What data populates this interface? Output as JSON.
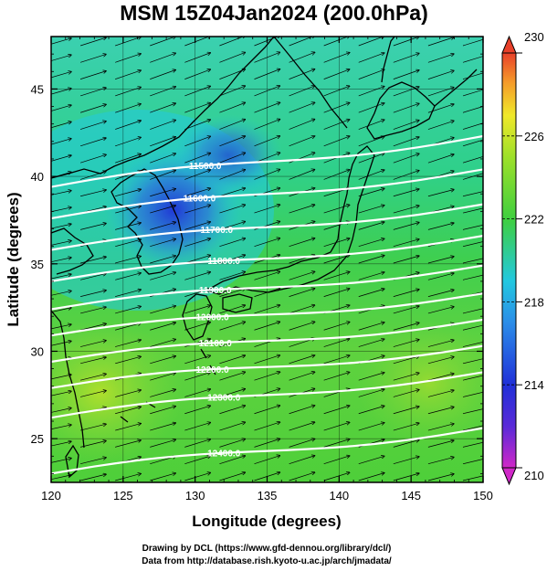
{
  "title": "MSM 15Z04Jan2024 (200.0hPa)",
  "x_label": "Longitude (degrees)",
  "y_label": "Latitude  (degrees)",
  "x_ticks": [
    "120",
    "125",
    "130",
    "135",
    "140",
    "145",
    "150"
  ],
  "y_ticks": [
    "25",
    "30",
    "35",
    "40",
    "45"
  ],
  "colorbar_ticks": [
    "230",
    "226",
    "222",
    "218",
    "214",
    "210"
  ],
  "credits": [
    "Drawing by DCL (https://www.gfd-dennou.org/library/dcl/)",
    "Data from http://database.rish.kyoto-u.ac.jp/arch/jmadata/"
  ],
  "colors": {
    "cold": "#2a2ad8",
    "cyan": "#22c8e0",
    "green": "#3fcf3f",
    "yellow_green": "#9ee02a",
    "contour": "#ffffff",
    "coast": "#000000",
    "colorbar_top": "#e8402a",
    "colorbar_bottom": "#d028c8"
  },
  "map_data": {
    "lon_range": [
      120,
      150
    ],
    "lat_range": [
      22.5,
      48
    ],
    "field": "temperature",
    "colorbar_range": [
      210,
      230
    ],
    "contours": [
      {
        "label": "11500.0",
        "lat_start": 39.4,
        "lat_end": 42.3,
        "label_lon": 130.7
      },
      {
        "label": "11600.0",
        "lat_start": 37.6,
        "lat_end": 40.4,
        "label_lon": 130.3
      },
      {
        "label": "11700.0",
        "lat_start": 35.8,
        "lat_end": 38.4,
        "label_lon": 131.5
      },
      {
        "label": "11800.0",
        "lat_start": 34.0,
        "lat_end": 36.6,
        "label_lon": 132.0
      },
      {
        "label": "11900.0",
        "lat_start": 32.4,
        "lat_end": 34.9,
        "label_lon": 131.4
      },
      {
        "label": "12000.0",
        "lat_start": 30.9,
        "lat_end": 33.3,
        "label_lon": 131.2
      },
      {
        "label": "12100.0",
        "lat_start": 29.4,
        "lat_end": 31.8,
        "label_lon": 131.4
      },
      {
        "label": "12200.0",
        "lat_start": 27.9,
        "lat_end": 30.3,
        "label_lon": 131.2
      },
      {
        "label": "12300.0",
        "lat_start": 26.2,
        "lat_end": 28.8,
        "label_lon": 132.0
      },
      {
        "label": "12400.0",
        "lat_start": 23.0,
        "lat_end": 25.6,
        "label_lon": 132.0
      }
    ]
  }
}
